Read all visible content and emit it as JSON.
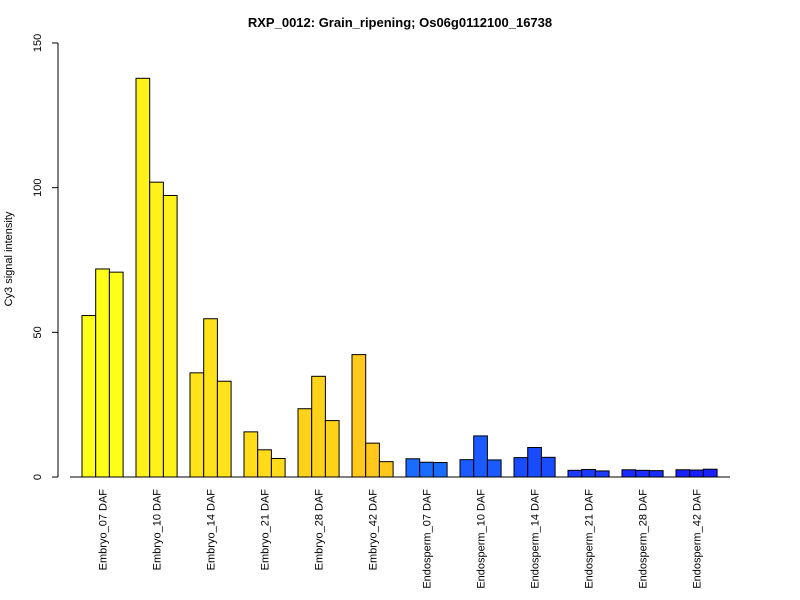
{
  "chart_data": {
    "type": "bar",
    "title": "RXP_0012: Grain_ripening; Os06g0112100_16738",
    "xlabel": "",
    "ylabel": "Cy3 signal intensity",
    "ylim": [
      0,
      150
    ],
    "yticks": [
      0,
      50,
      100,
      150
    ],
    "grid": false,
    "legend": "none",
    "categories": [
      "Embryo_07 DAF",
      "Embryo_10 DAF",
      "Embryo_14 DAF",
      "Embryo_21 DAF",
      "Embryo_28 DAF",
      "Embryo_42 DAF",
      "Endosperm_07 DAF",
      "Endosperm_10 DAF",
      "Endosperm_14 DAF",
      "Endosperm_21 DAF",
      "Endosperm_28 DAF",
      "Endosperm_42 DAF"
    ],
    "colors": [
      "#ffff1a",
      "#fff21a",
      "#ffe21a",
      "#ffdb1a",
      "#ffd21a",
      "#ffc81a",
      "#1a6bff",
      "#1a5aff",
      "#1a4cff",
      "#1a3cff",
      "#1a2dff",
      "#1a1fff"
    ],
    "replicates": [
      [
        55.8,
        71.9,
        70.8
      ],
      [
        137.8,
        101.9,
        97.3
      ],
      [
        36.0,
        54.7,
        33.1
      ],
      [
        15.6,
        9.4,
        6.4
      ],
      [
        23.6,
        34.8,
        19.5
      ],
      [
        42.3,
        11.7,
        5.3
      ],
      [
        6.3,
        5.1,
        5.0
      ],
      [
        6.0,
        14.2,
        5.9
      ],
      [
        6.7,
        10.2,
        6.8
      ],
      [
        2.3,
        2.6,
        2.1
      ],
      [
        2.5,
        2.3,
        2.2
      ],
      [
        2.5,
        2.4,
        2.7
      ]
    ]
  }
}
